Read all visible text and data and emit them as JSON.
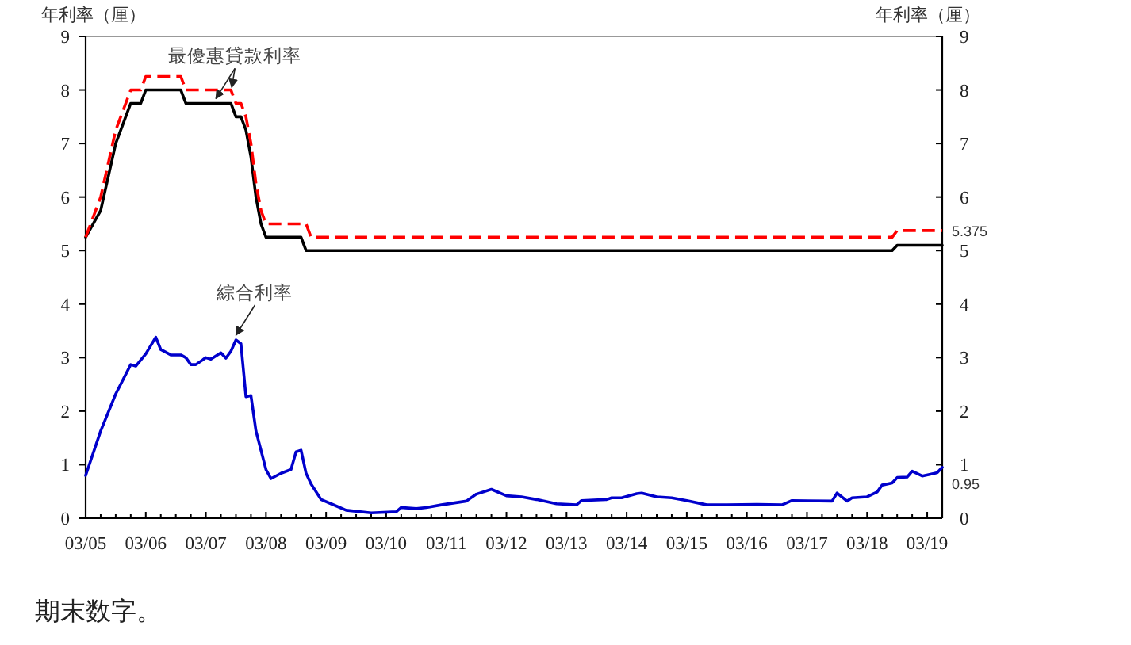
{
  "chart_data": {
    "type": "line",
    "ylabel": "年利率（厘）",
    "y2label": "年利率（厘）",
    "xlim": [
      "2005-03",
      "2019-06"
    ],
    "xticks": [
      {
        "value": "2005-03",
        "label": "03/05"
      },
      {
        "value": "2005-06",
        "label": null
      },
      {
        "value": "2005-09",
        "label": null
      },
      {
        "value": "2005-12",
        "label": null
      },
      {
        "value": "2006-03",
        "label": "03/06"
      },
      {
        "value": "2006-06",
        "label": null
      },
      {
        "value": "2006-09",
        "label": null
      },
      {
        "value": "2006-12",
        "label": null
      },
      {
        "value": "2007-03",
        "label": "03/07"
      },
      {
        "value": "2007-06",
        "label": null
      },
      {
        "value": "2007-09",
        "label": null
      },
      {
        "value": "2007-12",
        "label": null
      },
      {
        "value": "2008-03",
        "label": "03/08"
      },
      {
        "value": "2008-06",
        "label": null
      },
      {
        "value": "2008-09",
        "label": null
      },
      {
        "value": "2008-12",
        "label": null
      },
      {
        "value": "2009-03",
        "label": "03/09"
      },
      {
        "value": "2009-06",
        "label": null
      },
      {
        "value": "2009-09",
        "label": null
      },
      {
        "value": "2009-12",
        "label": null
      },
      {
        "value": "2010-03",
        "label": "03/10"
      },
      {
        "value": "2010-06",
        "label": null
      },
      {
        "value": "2010-09",
        "label": null
      },
      {
        "value": "2010-12",
        "label": null
      },
      {
        "value": "2011-03",
        "label": "03/11"
      },
      {
        "value": "2011-06",
        "label": null
      },
      {
        "value": "2011-09",
        "label": null
      },
      {
        "value": "2011-12",
        "label": null
      },
      {
        "value": "2012-03",
        "label": "03/12"
      },
      {
        "value": "2012-06",
        "label": null
      },
      {
        "value": "2012-09",
        "label": null
      },
      {
        "value": "2012-12",
        "label": null
      },
      {
        "value": "2013-03",
        "label": "03/13"
      },
      {
        "value": "2013-06",
        "label": null
      },
      {
        "value": "2013-09",
        "label": null
      },
      {
        "value": "2013-12",
        "label": null
      },
      {
        "value": "2014-03",
        "label": "03/14"
      },
      {
        "value": "2014-06",
        "label": null
      },
      {
        "value": "2014-09",
        "label": null
      },
      {
        "value": "2014-12",
        "label": null
      },
      {
        "value": "2015-03",
        "label": "03/15"
      },
      {
        "value": "2015-06",
        "label": null
      },
      {
        "value": "2015-09",
        "label": null
      },
      {
        "value": "2015-12",
        "label": null
      },
      {
        "value": "2016-03",
        "label": "03/16"
      },
      {
        "value": "2016-06",
        "label": null
      },
      {
        "value": "2016-09",
        "label": null
      },
      {
        "value": "2016-12",
        "label": null
      },
      {
        "value": "2017-03",
        "label": "03/17"
      },
      {
        "value": "2017-06",
        "label": null
      },
      {
        "value": "2017-09",
        "label": null
      },
      {
        "value": "2017-12",
        "label": null
      },
      {
        "value": "2018-03",
        "label": "03/18"
      },
      {
        "value": "2018-06",
        "label": null
      },
      {
        "value": "2018-09",
        "label": null
      },
      {
        "value": "2018-12",
        "label": null
      },
      {
        "value": "2019-03",
        "label": "03/19"
      }
    ],
    "ylim": [
      0,
      9
    ],
    "yticks": [
      0,
      1,
      2,
      3,
      4,
      5,
      6,
      7,
      8,
      9
    ],
    "y2lim": [
      0,
      9
    ],
    "y2ticks": [
      0,
      1,
      2,
      3,
      4,
      5,
      6,
      7,
      8,
      9
    ],
    "series": [
      {
        "color": "#000000",
        "line_style": "solid",
        "x": [
          "2005-03",
          "2005-06",
          "2005-09",
          "2005-12",
          "2006-02",
          "2006-03",
          "2006-10",
          "2006-11",
          "2007-08",
          "2007-09",
          "2007-10",
          "2007-11",
          "2007-12",
          "2008-01",
          "2008-02",
          "2008-03",
          "2008-10",
          "2008-11",
          "2018-08",
          "2018-09",
          "2019-06"
        ],
        "values": [
          5.25,
          5.75,
          7.0,
          7.75,
          7.75,
          8.0,
          8.0,
          7.75,
          7.75,
          7.5,
          7.5,
          7.25,
          6.75,
          6.0,
          5.5,
          5.25,
          5.25,
          5.0,
          5.0,
          5.1,
          5.1
        ]
      },
      {
        "color": "#ff0000",
        "line_style": "dashed",
        "x": [
          "2005-03",
          "2005-06",
          "2005-09",
          "2005-12",
          "2006-02",
          "2006-03",
          "2006-10",
          "2006-11",
          "2007-08",
          "2007-09",
          "2007-10",
          "2007-11",
          "2007-12",
          "2008-01",
          "2008-02",
          "2008-03",
          "2008-11",
          "2008-12",
          "2018-08",
          "2018-09",
          "2019-06"
        ],
        "values": [
          5.25,
          6.0,
          7.25,
          8.0,
          8.0,
          8.25,
          8.25,
          8.0,
          8.0,
          7.75,
          7.75,
          7.5,
          7.0,
          6.25,
          5.75,
          5.5,
          5.5,
          5.25,
          5.25,
          5.375,
          5.375
        ],
        "value_labels": [
          null,
          null,
          null,
          null,
          null,
          null,
          null,
          null,
          null,
          null,
          null,
          null,
          null,
          null,
          null,
          null,
          null,
          null,
          null,
          null,
          "5.375"
        ]
      },
      {
        "color": "#0000cc",
        "line_style": "solid",
        "x": [
          "2005-03",
          "2005-06",
          "2005-09",
          "2005-12",
          "2006-01",
          "2006-03",
          "2006-05",
          "2006-06",
          "2006-08",
          "2006-10",
          "2006-11",
          "2006-12",
          "2007-01",
          "2007-03",
          "2007-04",
          "2007-06",
          "2007-07",
          "2007-08",
          "2007-09",
          "2007-10",
          "2007-11",
          "2007-12",
          "2008-01",
          "2008-03",
          "2008-04",
          "2008-06",
          "2008-08",
          "2008-09",
          "2008-10",
          "2008-11",
          "2008-12",
          "2009-02",
          "2009-04",
          "2009-07",
          "2009-12",
          "2010-05",
          "2010-06",
          "2010-09",
          "2010-11",
          "2011-02",
          "2011-07",
          "2011-09",
          "2011-12",
          "2012-03",
          "2012-06",
          "2012-09",
          "2013-01",
          "2013-05",
          "2013-06",
          "2013-11",
          "2013-12",
          "2014-02",
          "2014-05",
          "2014-06",
          "2014-09",
          "2014-12",
          "2015-03",
          "2015-07",
          "2015-11",
          "2016-05",
          "2016-10",
          "2016-12",
          "2017-08",
          "2017-09",
          "2017-11",
          "2017-12",
          "2018-03",
          "2018-05",
          "2018-06",
          "2018-08",
          "2018-09",
          "2018-11",
          "2018-12",
          "2019-02",
          "2019-04",
          "2019-05",
          "2019-06"
        ],
        "values": [
          0.8,
          1.63,
          2.32,
          2.87,
          2.84,
          3.07,
          3.38,
          3.15,
          3.05,
          3.05,
          3.0,
          2.87,
          2.87,
          3.0,
          2.97,
          3.09,
          2.99,
          3.12,
          3.33,
          3.26,
          2.27,
          2.29,
          1.63,
          0.91,
          0.74,
          0.84,
          0.91,
          1.24,
          1.27,
          0.84,
          0.64,
          0.35,
          0.27,
          0.15,
          0.1,
          0.12,
          0.2,
          0.18,
          0.2,
          0.25,
          0.32,
          0.45,
          0.54,
          0.42,
          0.4,
          0.35,
          0.27,
          0.25,
          0.33,
          0.35,
          0.38,
          0.38,
          0.46,
          0.47,
          0.4,
          0.38,
          0.33,
          0.25,
          0.25,
          0.26,
          0.25,
          0.33,
          0.32,
          0.47,
          0.32,
          0.38,
          0.4,
          0.49,
          0.62,
          0.66,
          0.76,
          0.77,
          0.88,
          0.79,
          0.83,
          0.85,
          0.95
        ],
        "value_labels": [
          null,
          null,
          null,
          null,
          null,
          null,
          null,
          null,
          null,
          null,
          null,
          null,
          null,
          null,
          null,
          null,
          null,
          null,
          null,
          null,
          null,
          null,
          null,
          null,
          null,
          null,
          null,
          null,
          null,
          null,
          null,
          null,
          null,
          null,
          null,
          null,
          null,
          null,
          null,
          null,
          null,
          null,
          null,
          null,
          null,
          null,
          null,
          null,
          null,
          null,
          null,
          null,
          null,
          null,
          null,
          null,
          null,
          null,
          null,
          null,
          null,
          null,
          null,
          null,
          null,
          null,
          null,
          null,
          null,
          null,
          null,
          null,
          null,
          null,
          null,
          null,
          "0.95"
        ]
      }
    ],
    "annotations": [
      {
        "text": "最優惠貸款利率",
        "x": "2007-05",
        "y": 7.75
      },
      {
        "text": "綜合利率",
        "x": "2007-09",
        "y": 3.33
      },
      "期末数字。"
    ]
  }
}
